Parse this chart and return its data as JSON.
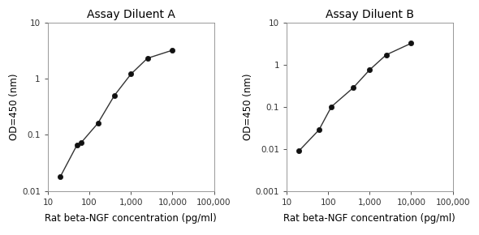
{
  "chart_a": {
    "title": "Assay Diluent A",
    "x": [
      20,
      50,
      63,
      160,
      400,
      1000,
      2500,
      10000
    ],
    "y": [
      0.018,
      0.065,
      0.072,
      0.16,
      0.5,
      1.2,
      2.3,
      3.2
    ],
    "xlim": [
      10,
      100000
    ],
    "ylim": [
      0.01,
      10
    ],
    "xticks": [
      10,
      100,
      1000,
      10000,
      100000
    ],
    "xtick_labels": [
      "10",
      "100",
      "1,000",
      "10,000",
      "100,000"
    ],
    "yticks": [
      0.01,
      0.1,
      1,
      10
    ],
    "ytick_labels": [
      "0.01",
      "0.1",
      "1",
      "10"
    ],
    "xlabel": "Rat beta-NGF concentration (pg/ml)",
    "ylabel": "OD=450 (nm)"
  },
  "chart_b": {
    "title": "Assay Diluent B",
    "x": [
      20,
      60,
      120,
      400,
      1000,
      2500,
      10000
    ],
    "y": [
      0.009,
      0.028,
      0.1,
      0.28,
      0.75,
      1.7,
      3.2
    ],
    "xlim": [
      10,
      100000
    ],
    "ylim": [
      0.001,
      10
    ],
    "xticks": [
      10,
      100,
      1000,
      10000,
      100000
    ],
    "xtick_labels": [
      "10",
      "100",
      "1,000",
      "10,000",
      "100,000"
    ],
    "yticks": [
      0.001,
      0.01,
      0.1,
      1,
      10
    ],
    "ytick_labels": [
      "0.001",
      "0.01",
      "0.1",
      "1",
      "10"
    ],
    "xlabel": "Rat beta-NGF concentration (pg/ml)",
    "ylabel": "OD=450 (nm)"
  },
  "line_color": "#333333",
  "marker_color": "#111111",
  "bg_color": "#ffffff",
  "title_fontsize": 10,
  "label_fontsize": 8.5,
  "tick_fontsize": 7.5
}
